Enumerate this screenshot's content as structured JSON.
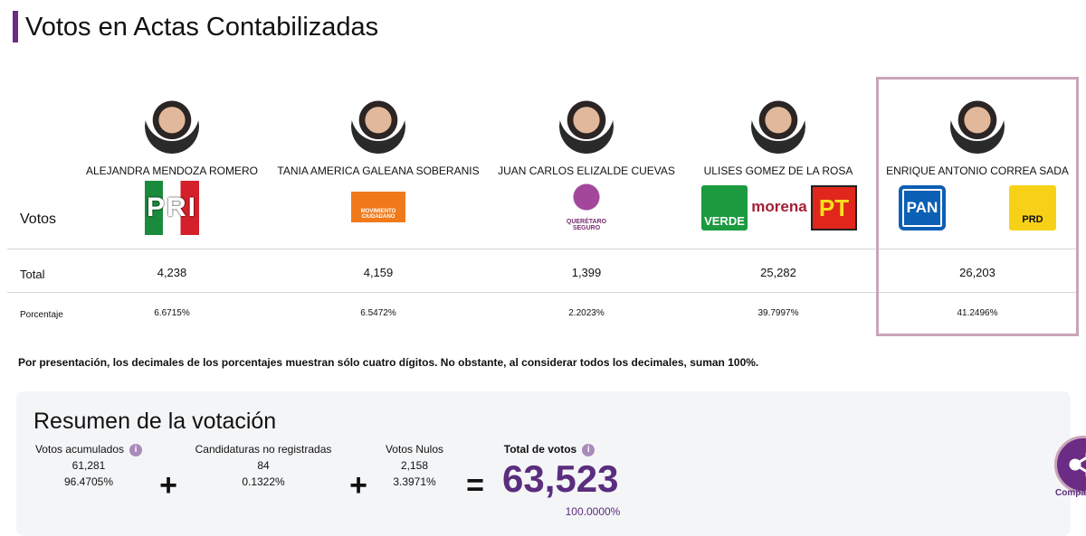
{
  "header": {
    "title": "Votos en Actas Contabilizadas"
  },
  "table": {
    "corner": "Votos",
    "candidates": [
      {
        "name": "ALEJANDRA MENDOZA ROMERO",
        "parties": [
          "PRI"
        ]
      },
      {
        "name": "TANIA AMERICA GALEANA SOBERANIS",
        "parties": [
          "MOVIMIENTO CIUDADANO"
        ]
      },
      {
        "name": "JUAN CARLOS ELIZALDE CUEVAS",
        "parties": [
          "QUERÉTARO SEGURO"
        ]
      },
      {
        "name": "ULISES GOMEZ DE LA ROSA",
        "parties": [
          "VERDE",
          "morena",
          "PT"
        ]
      },
      {
        "name": "ENRIQUE ANTONIO CORREA SADA",
        "parties": [
          "PAN",
          "PRD"
        ]
      }
    ],
    "rows": [
      {
        "label": "Total",
        "values": [
          "4,238",
          "4,159",
          "1,399",
          "25,282",
          "26,203"
        ]
      },
      {
        "label": "Porcentaje",
        "values": [
          "6.6715%",
          "6.5472%",
          "2.2023%",
          "39.7997%",
          "41.2496%"
        ]
      }
    ]
  },
  "note": "Por presentación, los decimales de los porcentajes muestran sólo cuatro dígitos. No obstante, al considerar todos los decimales, suman 100%.",
  "summary": {
    "title": "Resumen de la votación",
    "items": [
      {
        "label": "Votos acumulados",
        "votes": "61,281",
        "percent": "96.4705%"
      },
      {
        "label": "Candidaturas no registradas",
        "votes": "84",
        "percent": "0.1322%"
      },
      {
        "label": "Votos Nulos",
        "votes": "2,158",
        "percent": "3.3971%"
      }
    ],
    "operators": [
      "+",
      "+",
      "="
    ],
    "total": {
      "label": "Total de votos",
      "votes": "63,523",
      "percent": "100.0000%"
    }
  },
  "share": {
    "label": "Compa"
  }
}
